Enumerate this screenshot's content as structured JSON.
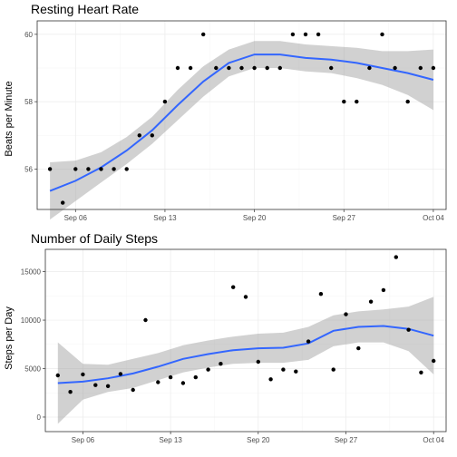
{
  "chart_data": [
    {
      "type": "scatter",
      "title": "Resting Heart Rate",
      "xlabel": "",
      "ylabel": "Beats per Minute",
      "x_tick_labels": [
        "Sep 06",
        "Sep 13",
        "Sep 20",
        "Sep 27",
        "Oct 04"
      ],
      "y_ticks": [
        56,
        58,
        60
      ],
      "ylim": [
        54.8,
        60.4
      ],
      "grid": true,
      "x": [
        "2020-09-04",
        "2020-09-05",
        "2020-09-06",
        "2020-09-07",
        "2020-09-08",
        "2020-09-09",
        "2020-09-10",
        "2020-09-11",
        "2020-09-12",
        "2020-09-13",
        "2020-09-14",
        "2020-09-15",
        "2020-09-16",
        "2020-09-17",
        "2020-09-18",
        "2020-09-19",
        "2020-09-20",
        "2020-09-21",
        "2020-09-22",
        "2020-09-23",
        "2020-09-24",
        "2020-09-25",
        "2020-09-26",
        "2020-09-27",
        "2020-09-28",
        "2020-09-29",
        "2020-09-30",
        "2020-10-01",
        "2020-10-02",
        "2020-10-03",
        "2020-10-04"
      ],
      "values": [
        56,
        55,
        56,
        56,
        56,
        56,
        56,
        57,
        57,
        58,
        59,
        59,
        60,
        59,
        59,
        59,
        59,
        59,
        59,
        60,
        60,
        60,
        59,
        58,
        58,
        59,
        60,
        59,
        58,
        59,
        59
      ],
      "smooth": {
        "x": [
          "2020-09-04",
          "2020-09-06",
          "2020-09-08",
          "2020-09-10",
          "2020-09-12",
          "2020-09-14",
          "2020-09-16",
          "2020-09-18",
          "2020-09-20",
          "2020-09-22",
          "2020-09-24",
          "2020-09-26",
          "2020-09-28",
          "2020-09-30",
          "2020-10-02",
          "2020-10-04"
        ],
        "fit": [
          55.35,
          55.65,
          56.05,
          56.55,
          57.15,
          57.9,
          58.6,
          59.15,
          59.4,
          59.4,
          59.3,
          59.25,
          59.15,
          59.0,
          58.85,
          58.65
        ],
        "lower": [
          54.5,
          55.05,
          55.6,
          56.15,
          56.75,
          57.45,
          58.15,
          58.75,
          59.0,
          59.0,
          58.9,
          58.85,
          58.7,
          58.5,
          58.2,
          57.75
        ],
        "upper": [
          56.2,
          56.25,
          56.5,
          56.95,
          57.55,
          58.35,
          59.05,
          59.55,
          59.8,
          59.8,
          59.7,
          59.65,
          59.6,
          59.5,
          59.5,
          59.55
        ]
      }
    },
    {
      "type": "scatter",
      "title": "Number of Daily Steps",
      "xlabel": "",
      "ylabel": "Steps per Day",
      "x_tick_labels": [
        "Sep 06",
        "Sep 13",
        "Sep 20",
        "Sep 27",
        "Oct 04"
      ],
      "y_ticks": [
        0,
        5000,
        10000,
        15000
      ],
      "ylim": [
        -1500,
        17300
      ],
      "grid": true,
      "x": [
        "2020-09-04",
        "2020-09-05",
        "2020-09-06",
        "2020-09-07",
        "2020-09-08",
        "2020-09-09",
        "2020-09-10",
        "2020-09-11",
        "2020-09-12",
        "2020-09-13",
        "2020-09-14",
        "2020-09-15",
        "2020-09-16",
        "2020-09-17",
        "2020-09-18",
        "2020-09-19",
        "2020-09-20",
        "2020-09-21",
        "2020-09-22",
        "2020-09-23",
        "2020-09-24",
        "2020-09-25",
        "2020-09-26",
        "2020-09-27",
        "2020-09-28",
        "2020-09-29",
        "2020-09-30",
        "2020-10-01",
        "2020-10-02",
        "2020-10-03",
        "2020-10-04"
      ],
      "values": [
        4300,
        2600,
        4400,
        3300,
        3200,
        4450,
        2800,
        10000,
        3600,
        4100,
        3500,
        4100,
        4900,
        5500,
        13400,
        12400,
        5700,
        3900,
        4900,
        4700,
        7800,
        12700,
        4900,
        10600,
        7100,
        11900,
        13100,
        16500,
        9000,
        4600,
        5800
      ],
      "smooth": {
        "x": [
          "2020-09-04",
          "2020-09-06",
          "2020-09-08",
          "2020-09-10",
          "2020-09-12",
          "2020-09-14",
          "2020-09-16",
          "2020-09-18",
          "2020-09-20",
          "2020-09-22",
          "2020-09-24",
          "2020-09-26",
          "2020-09-28",
          "2020-09-30",
          "2020-10-02",
          "2020-10-04"
        ],
        "fit": [
          3500,
          3650,
          4000,
          4500,
          5200,
          6000,
          6500,
          6900,
          7100,
          7150,
          7600,
          8900,
          9300,
          9400,
          9100,
          8400
        ],
        "lower": [
          -700,
          1800,
          2600,
          3000,
          3800,
          4600,
          5100,
          5500,
          5600,
          5600,
          5900,
          7300,
          7700,
          7700,
          6800,
          4400
        ],
        "upper": [
          7700,
          5500,
          5400,
          6000,
          6600,
          7400,
          7900,
          8300,
          8600,
          8700,
          9300,
          10500,
          10900,
          11100,
          11400,
          12400
        ]
      }
    }
  ]
}
